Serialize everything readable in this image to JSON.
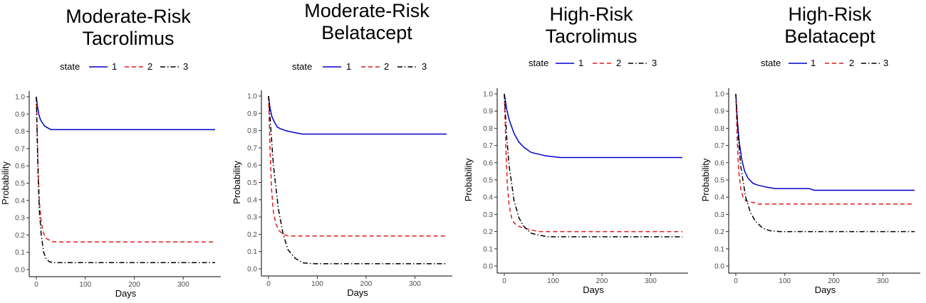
{
  "chart_data": [
    {
      "type": "line",
      "title_lines": [
        "Moderate-Risk",
        "Tacrolimus"
      ],
      "xlabel": "Days",
      "ylabel": "Probability",
      "xlim": [
        0,
        365
      ],
      "ylim": [
        0,
        1
      ],
      "xticks": [
        0,
        100,
        200,
        300
      ],
      "yticks": [
        0.0,
        0.1,
        0.2,
        0.3,
        0.4,
        0.5,
        0.6,
        0.7,
        0.8,
        0.9,
        1.0
      ],
      "grid": false,
      "legend": {
        "title": "state",
        "position": "top"
      },
      "series": [
        {
          "name": "1",
          "color": "#0000cc",
          "dash": "solid",
          "x": [
            0,
            2,
            5,
            8,
            12,
            17,
            23,
            30,
            40,
            365
          ],
          "y": [
            1.0,
            0.95,
            0.9,
            0.87,
            0.85,
            0.83,
            0.82,
            0.81,
            0.81,
            0.81
          ]
        },
        {
          "name": "2",
          "color": "#e41a1c",
          "dash": "dashed",
          "x": [
            0,
            3,
            6,
            10,
            15,
            20,
            27,
            35,
            45,
            365
          ],
          "y": [
            1.0,
            0.65,
            0.4,
            0.27,
            0.21,
            0.18,
            0.17,
            0.16,
            0.16,
            0.16
          ]
        },
        {
          "name": "3",
          "color": "#000000",
          "dash": "dotdash",
          "x": [
            0,
            3,
            6,
            10,
            15,
            20,
            27,
            35,
            45,
            365
          ],
          "y": [
            1.0,
            0.6,
            0.35,
            0.2,
            0.1,
            0.06,
            0.045,
            0.04,
            0.04,
            0.04
          ]
        }
      ]
    },
    {
      "type": "line",
      "title_lines": [
        "Moderate-Risk",
        "Belatacept"
      ],
      "xlabel": "Days",
      "ylabel": "Probability",
      "xlim": [
        0,
        365
      ],
      "ylim": [
        0,
        1
      ],
      "xticks": [
        0,
        100,
        200,
        300
      ],
      "yticks": [
        0.0,
        0.1,
        0.2,
        0.3,
        0.4,
        0.5,
        0.6,
        0.7,
        0.8,
        0.9,
        1.0
      ],
      "grid": false,
      "legend": {
        "title": "state",
        "position": "top"
      },
      "series": [
        {
          "name": "1",
          "color": "#0000cc",
          "dash": "solid",
          "x": [
            0,
            3,
            7,
            12,
            18,
            25,
            35,
            50,
            70,
            365
          ],
          "y": [
            1.0,
            0.93,
            0.88,
            0.85,
            0.82,
            0.81,
            0.8,
            0.79,
            0.78,
            0.78
          ]
        },
        {
          "name": "2",
          "color": "#e41a1c",
          "dash": "dashed",
          "x": [
            0,
            3,
            6,
            10,
            15,
            22,
            30,
            40,
            55,
            365
          ],
          "y": [
            1.0,
            0.7,
            0.47,
            0.33,
            0.26,
            0.22,
            0.2,
            0.19,
            0.19,
            0.19
          ]
        },
        {
          "name": "3",
          "color": "#000000",
          "dash": "dotdash",
          "x": [
            0,
            5,
            10,
            20,
            30,
            40,
            55,
            70,
            90,
            365
          ],
          "y": [
            1.0,
            0.8,
            0.6,
            0.35,
            0.2,
            0.11,
            0.06,
            0.035,
            0.03,
            0.03
          ]
        }
      ]
    },
    {
      "type": "line",
      "title_lines": [
        "High-Risk",
        "Tacrolimus"
      ],
      "xlabel": "Days",
      "ylabel": "Probability",
      "xlim": [
        0,
        365
      ],
      "ylim": [
        0,
        1
      ],
      "xticks": [
        0,
        100,
        200,
        300
      ],
      "yticks": [
        0.0,
        0.1,
        0.2,
        0.3,
        0.4,
        0.5,
        0.6,
        0.7,
        0.8,
        0.9,
        1.0
      ],
      "grid": false,
      "legend": {
        "title": "state",
        "position": "top"
      },
      "series": [
        {
          "name": "1",
          "color": "#0000cc",
          "dash": "solid",
          "x": [
            0,
            5,
            10,
            20,
            30,
            40,
            55,
            70,
            85,
            115,
            365
          ],
          "y": [
            1.0,
            0.91,
            0.85,
            0.77,
            0.72,
            0.69,
            0.66,
            0.65,
            0.64,
            0.63,
            0.63
          ]
        },
        {
          "name": "2",
          "color": "#e41a1c",
          "dash": "dashed",
          "x": [
            0,
            3,
            6,
            10,
            15,
            20,
            30,
            40,
            55,
            70,
            365
          ],
          "y": [
            1.0,
            0.7,
            0.48,
            0.35,
            0.28,
            0.25,
            0.23,
            0.22,
            0.21,
            0.2,
            0.2
          ]
        },
        {
          "name": "3",
          "color": "#000000",
          "dash": "dotdash",
          "x": [
            0,
            5,
            10,
            20,
            30,
            40,
            55,
            70,
            90,
            365
          ],
          "y": [
            1.0,
            0.75,
            0.58,
            0.38,
            0.28,
            0.23,
            0.19,
            0.18,
            0.17,
            0.17
          ]
        }
      ]
    },
    {
      "type": "line",
      "title_lines": [
        "High-Risk",
        "Belatacept"
      ],
      "xlabel": "Days",
      "ylabel": "Probability",
      "xlim": [
        0,
        365
      ],
      "ylim": [
        0,
        1
      ],
      "xticks": [
        0,
        100,
        200,
        300
      ],
      "yticks": [
        0.0,
        0.1,
        0.2,
        0.3,
        0.4,
        0.5,
        0.6,
        0.7,
        0.8,
        0.9,
        1.0
      ],
      "grid": false,
      "legend": {
        "title": "state",
        "position": "top"
      },
      "series": [
        {
          "name": "1",
          "color": "#0000cc",
          "dash": "solid",
          "x": [
            0,
            3,
            7,
            12,
            18,
            25,
            35,
            45,
            60,
            80,
            150,
            160,
            365
          ],
          "y": [
            1.0,
            0.85,
            0.72,
            0.62,
            0.55,
            0.51,
            0.48,
            0.47,
            0.46,
            0.45,
            0.45,
            0.44,
            0.44
          ]
        },
        {
          "name": "2",
          "color": "#e41a1c",
          "dash": "dashed",
          "x": [
            0,
            3,
            6,
            10,
            15,
            20,
            27,
            35,
            45,
            365
          ],
          "y": [
            1.0,
            0.72,
            0.55,
            0.45,
            0.4,
            0.38,
            0.37,
            0.37,
            0.36,
            0.36
          ]
        },
        {
          "name": "3",
          "color": "#000000",
          "dash": "dotdash",
          "x": [
            0,
            5,
            10,
            20,
            30,
            40,
            55,
            70,
            90,
            365
          ],
          "y": [
            1.0,
            0.75,
            0.58,
            0.4,
            0.31,
            0.26,
            0.22,
            0.205,
            0.2,
            0.2
          ]
        }
      ]
    }
  ]
}
